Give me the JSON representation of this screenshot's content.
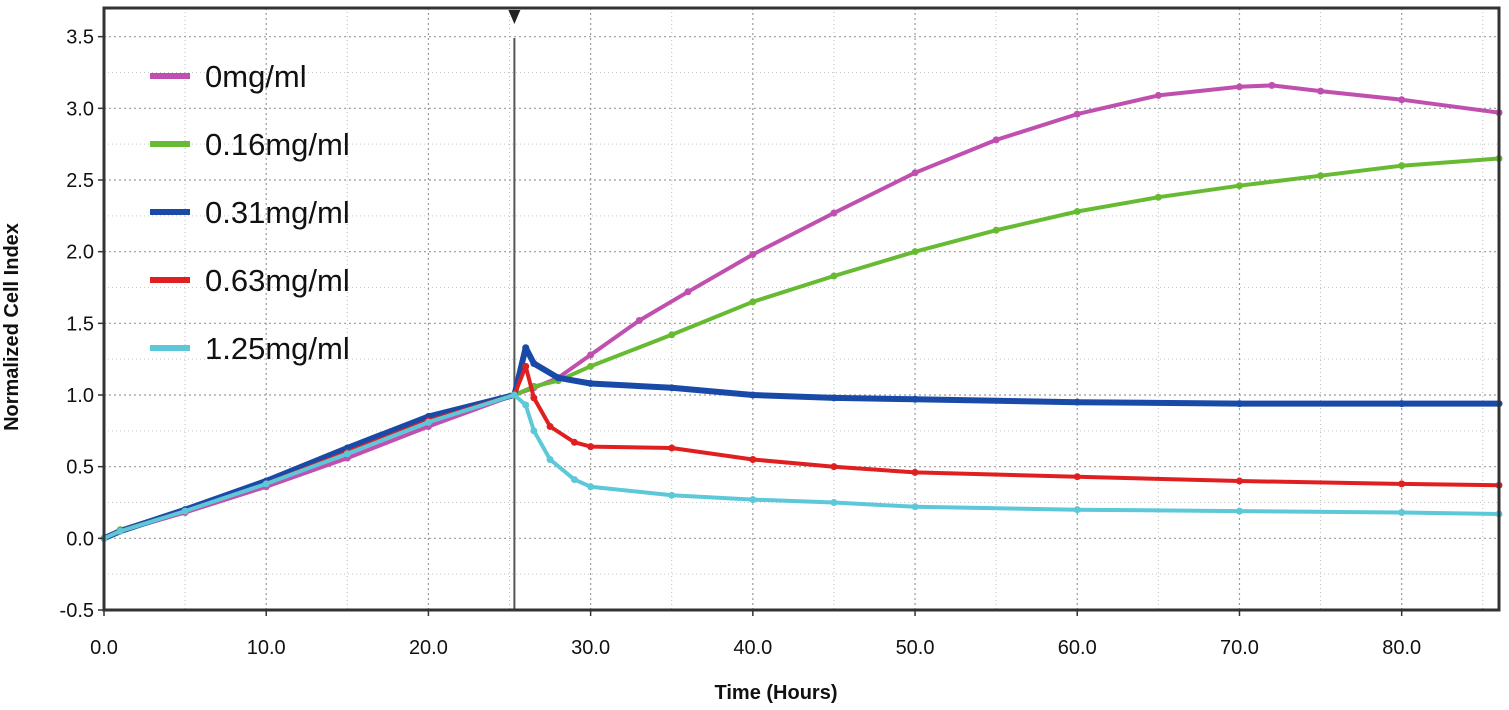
{
  "chart_data": {
    "type": "line",
    "title": "",
    "xlabel": "Time (Hours)",
    "ylabel": "Normalized Cell Index",
    "xlim": [
      0,
      86
    ],
    "ylim": [
      -0.5,
      3.7
    ],
    "x_ticks": [
      "0.0",
      "10.0",
      "20.0",
      "30.0",
      "40.0",
      "50.0",
      "60.0",
      "70.0",
      "80.0"
    ],
    "y_ticks": [
      "-0.5",
      "0.0",
      "0.5",
      "1.0",
      "1.5",
      "2.0",
      "2.5",
      "3.0",
      "3.5"
    ],
    "grid": true,
    "legend_position": "top-left",
    "treatment_marker_x": 25.3,
    "series": [
      {
        "name": "0mg/ml",
        "color": "#c050b0",
        "x": [
          0,
          1,
          5,
          10,
          15,
          20,
          25.3,
          26.5,
          28,
          30,
          33,
          36,
          40,
          45,
          50,
          55,
          60,
          65,
          70,
          72,
          75,
          80,
          86
        ],
        "y": [
          0,
          0.05,
          0.18,
          0.36,
          0.56,
          0.78,
          1.0,
          1.05,
          1.12,
          1.28,
          1.52,
          1.72,
          1.98,
          2.27,
          2.55,
          2.78,
          2.96,
          3.09,
          3.15,
          3.16,
          3.12,
          3.06,
          2.97
        ]
      },
      {
        "name": "0.16mg/ml",
        "color": "#66bb33",
        "x": [
          0,
          1,
          5,
          10,
          15,
          20,
          25.3,
          26.5,
          28,
          30,
          35,
          40,
          45,
          50,
          55,
          60,
          65,
          70,
          75,
          80,
          86
        ],
        "y": [
          0,
          0.06,
          0.2,
          0.39,
          0.6,
          0.82,
          1.0,
          1.06,
          1.1,
          1.2,
          1.42,
          1.65,
          1.83,
          2.0,
          2.15,
          2.28,
          2.38,
          2.46,
          2.53,
          2.6,
          2.65
        ]
      },
      {
        "name": "0.31mg/ml",
        "color": "#1a4aa8",
        "x": [
          0,
          1,
          5,
          10,
          15,
          20,
          25.3,
          26,
          26.5,
          28,
          30,
          35,
          40,
          45,
          50,
          60,
          70,
          80,
          86
        ],
        "y": [
          0,
          0.05,
          0.2,
          0.4,
          0.63,
          0.85,
          1.0,
          1.33,
          1.22,
          1.12,
          1.08,
          1.05,
          1.0,
          0.98,
          0.97,
          0.95,
          0.94,
          0.94,
          0.94
        ]
      },
      {
        "name": "0.63mg/ml",
        "color": "#e02020",
        "x": [
          0,
          1,
          5,
          10,
          15,
          20,
          25.3,
          26,
          26.5,
          27.5,
          29,
          30,
          35,
          40,
          45,
          50,
          60,
          70,
          80,
          86
        ],
        "y": [
          0,
          0.05,
          0.19,
          0.38,
          0.6,
          0.82,
          1.0,
          1.2,
          0.98,
          0.78,
          0.67,
          0.64,
          0.63,
          0.55,
          0.5,
          0.46,
          0.43,
          0.4,
          0.38,
          0.37
        ]
      },
      {
        "name": "1.25mg/ml",
        "color": "#5cc8d8",
        "x": [
          0,
          1,
          5,
          10,
          15,
          20,
          25.3,
          26,
          26.5,
          27.5,
          29,
          30,
          35,
          40,
          45,
          50,
          60,
          70,
          80,
          86
        ],
        "y": [
          0,
          0.05,
          0.19,
          0.38,
          0.59,
          0.81,
          1.0,
          0.93,
          0.75,
          0.55,
          0.41,
          0.36,
          0.3,
          0.27,
          0.25,
          0.22,
          0.2,
          0.19,
          0.18,
          0.17
        ]
      }
    ]
  }
}
